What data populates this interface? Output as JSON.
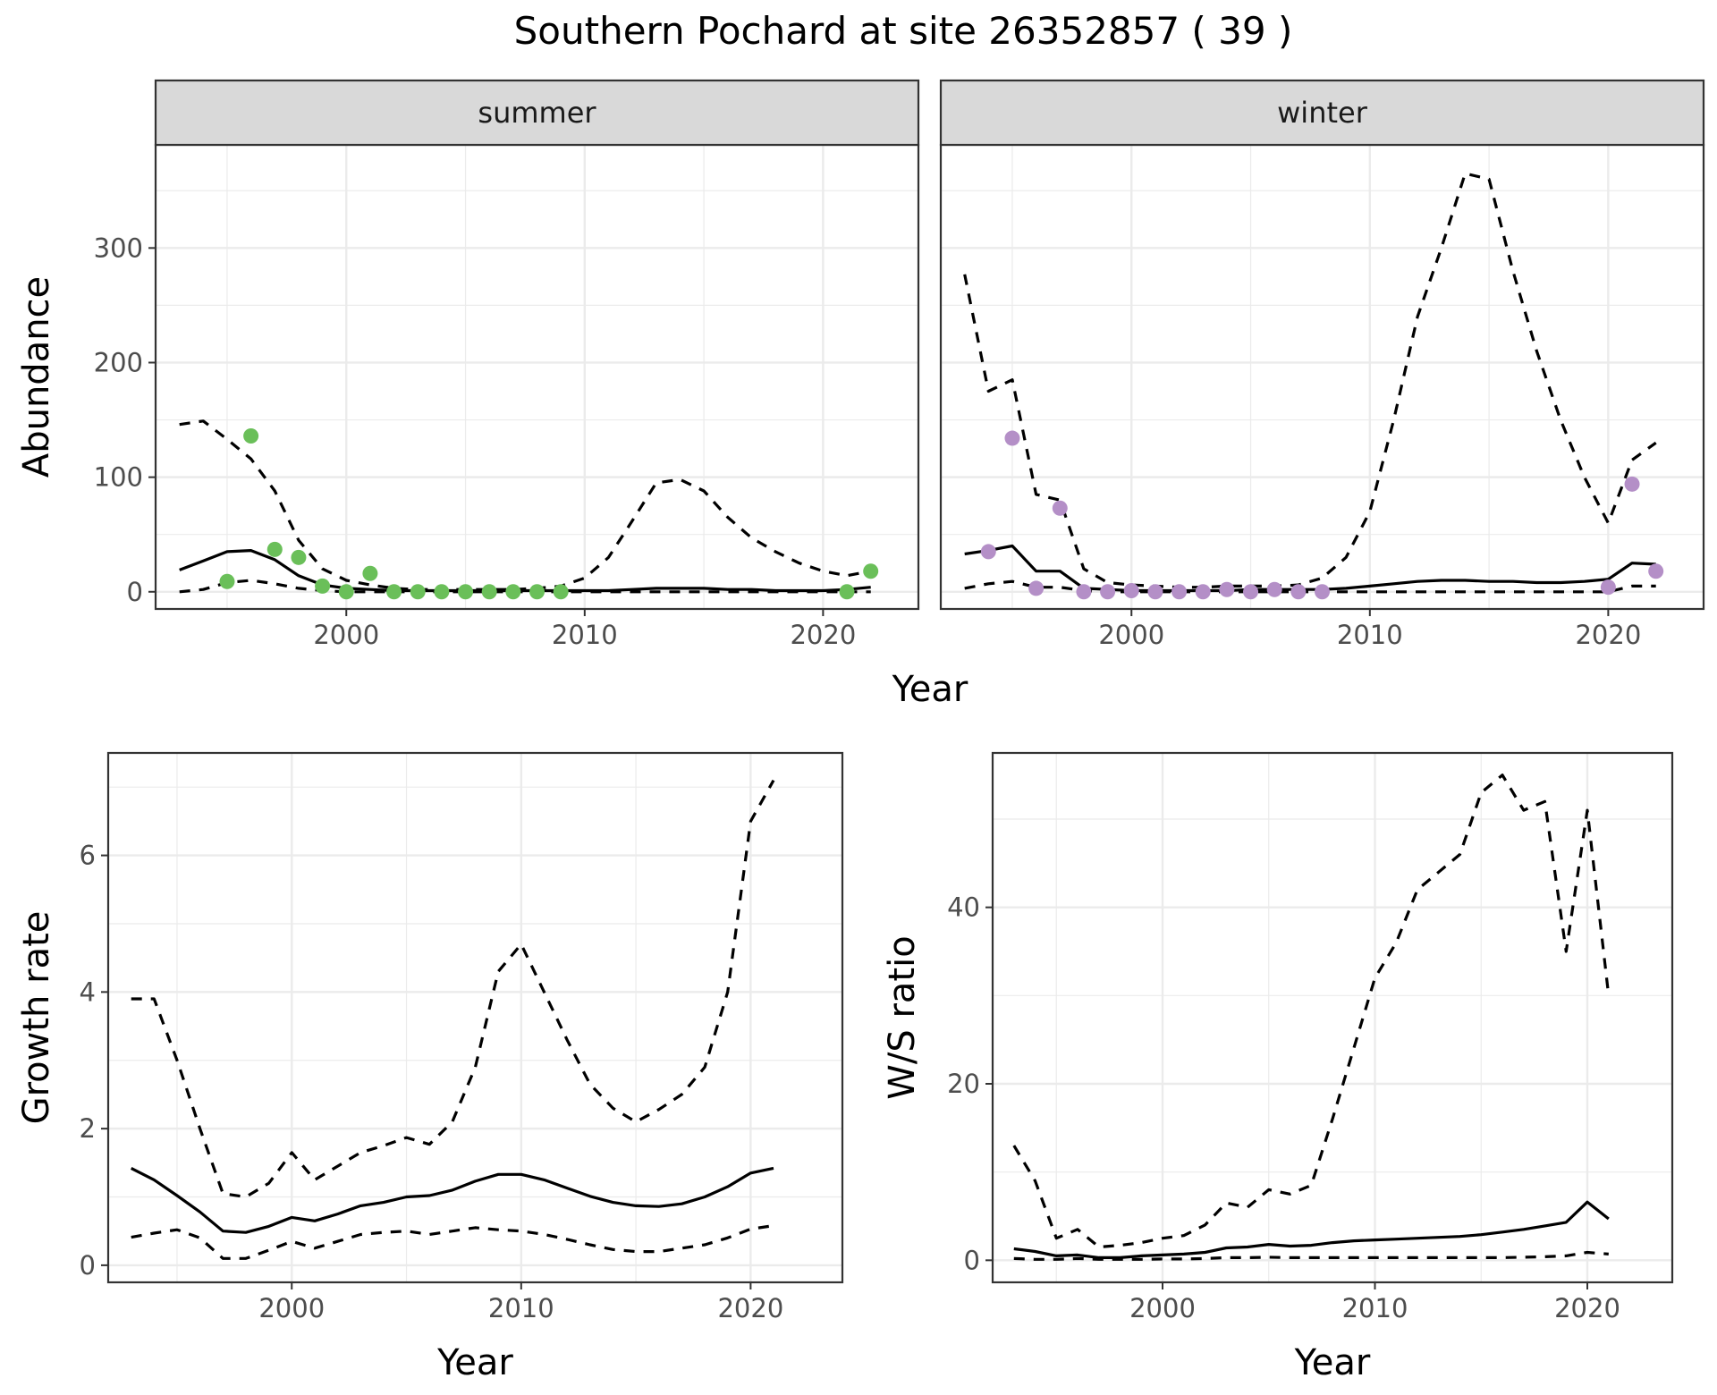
{
  "title": "Southern Pochard at site 26352857 ( 39 )",
  "colors": {
    "summer_points": "#6abf59",
    "winter_points": "#b48fc7",
    "lines": "#000000"
  },
  "chart_data": [
    {
      "id": "summer",
      "type": "line",
      "facet_label": "summer",
      "xlabel": "",
      "ylabel": "Abundance",
      "xlim": [
        1992,
        2024
      ],
      "ylim": [
        -15,
        390
      ],
      "xticks": [
        2000,
        2010,
        2020
      ],
      "yticks": [
        0,
        100,
        200,
        300
      ],
      "grid": true,
      "lines": {
        "x": [
          1993,
          1994,
          1995,
          1996,
          1997,
          1998,
          1999,
          2000,
          2001,
          2002,
          2003,
          2004,
          2005,
          2006,
          2007,
          2008,
          2009,
          2010,
          2011,
          2012,
          2013,
          2014,
          2015,
          2016,
          2017,
          2018,
          2019,
          2020,
          2021,
          2022
        ],
        "estimate": [
          19,
          27,
          35,
          36,
          28,
          14,
          6,
          3,
          2,
          1,
          1,
          1,
          1,
          1,
          1,
          1,
          1,
          1,
          1,
          2,
          3,
          3,
          3,
          2,
          2,
          1,
          1,
          1,
          2,
          4
        ],
        "upper": [
          146,
          149,
          133,
          116,
          88,
          45,
          20,
          10,
          6,
          3,
          2,
          2,
          2,
          2,
          2,
          3,
          5,
          12,
          30,
          62,
          95,
          98,
          88,
          65,
          47,
          35,
          25,
          18,
          14,
          18
        ],
        "lower": [
          0,
          2,
          8,
          10,
          7,
          3,
          1,
          0,
          0,
          0,
          0,
          0,
          0,
          0,
          0,
          0,
          0,
          0,
          0,
          0,
          0,
          0,
          0,
          0,
          0,
          0,
          0,
          0,
          0,
          0
        ]
      },
      "points": {
        "x": [
          1995,
          1996,
          1997,
          1998,
          1999,
          2000,
          2001,
          2002,
          2003,
          2004,
          2005,
          2006,
          2007,
          2008,
          2009,
          2021,
          2022
        ],
        "y": [
          9,
          136,
          37,
          30,
          5,
          0,
          16,
          0,
          0,
          0,
          0,
          0,
          0,
          0,
          0,
          0,
          18
        ]
      }
    },
    {
      "id": "winter",
      "type": "line",
      "facet_label": "winter",
      "xlabel": "",
      "ylabel": "",
      "xlim": [
        1992,
        2024
      ],
      "ylim": [
        -15,
        390
      ],
      "xticks": [
        2000,
        2010,
        2020
      ],
      "yticks": [
        0,
        100,
        200,
        300
      ],
      "grid": true,
      "lines": {
        "x": [
          1993,
          1994,
          1995,
          1996,
          1997,
          1998,
          1999,
          2000,
          2001,
          2002,
          2003,
          2004,
          2005,
          2006,
          2007,
          2008,
          2009,
          2010,
          2011,
          2012,
          2013,
          2014,
          2015,
          2016,
          2017,
          2018,
          2019,
          2020,
          2021,
          2022
        ],
        "estimate": [
          33,
          36,
          40,
          18,
          18,
          3,
          2,
          1,
          1,
          1,
          1,
          1,
          2,
          2,
          2,
          2,
          3,
          5,
          7,
          9,
          10,
          10,
          9,
          9,
          8,
          8,
          9,
          11,
          25,
          24
        ],
        "upper": [
          277,
          175,
          185,
          85,
          80,
          20,
          8,
          6,
          5,
          4,
          4,
          5,
          5,
          5,
          6,
          12,
          30,
          70,
          150,
          240,
          300,
          365,
          360,
          280,
          210,
          150,
          100,
          60,
          115,
          130
        ],
        "lower": [
          3,
          7,
          9,
          4,
          4,
          1,
          0,
          0,
          0,
          0,
          0,
          0,
          0,
          0,
          0,
          0,
          0,
          0,
          0,
          0,
          0,
          0,
          0,
          0,
          0,
          0,
          0,
          0,
          5,
          5
        ]
      },
      "points": {
        "x": [
          1994,
          1995,
          1996,
          1997,
          1998,
          1999,
          2000,
          2001,
          2002,
          2003,
          2004,
          2005,
          2006,
          2007,
          2008,
          2020,
          2021,
          2022
        ],
        "y": [
          35,
          134,
          3,
          73,
          0,
          0,
          1,
          0,
          0,
          0,
          2,
          0,
          2,
          0,
          0,
          4,
          94,
          18
        ]
      }
    },
    {
      "id": "growth",
      "type": "line",
      "xlabel": "Year",
      "ylabel": "Growth rate",
      "xlim": [
        1992,
        2024
      ],
      "ylim": [
        -0.25,
        7.5
      ],
      "xticks": [
        2000,
        2010,
        2020
      ],
      "yticks": [
        0,
        2,
        4,
        6
      ],
      "grid": true,
      "lines": {
        "x": [
          1993,
          1994,
          1995,
          1996,
          1997,
          1998,
          1999,
          2000,
          2001,
          2002,
          2003,
          2004,
          2005,
          2006,
          2007,
          2008,
          2009,
          2010,
          2011,
          2012,
          2013,
          2014,
          2015,
          2016,
          2017,
          2018,
          2019,
          2020,
          2021
        ],
        "estimate": [
          1.42,
          1.25,
          1.02,
          0.78,
          0.5,
          0.48,
          0.57,
          0.7,
          0.65,
          0.75,
          0.87,
          0.92,
          1.0,
          1.02,
          1.1,
          1.23,
          1.33,
          1.33,
          1.25,
          1.13,
          1.01,
          0.92,
          0.87,
          0.86,
          0.9,
          1.0,
          1.15,
          1.35,
          1.42
        ],
        "upper": [
          3.9,
          3.9,
          3.0,
          2.0,
          1.05,
          1.0,
          1.2,
          1.65,
          1.25,
          1.45,
          1.65,
          1.75,
          1.87,
          1.77,
          2.1,
          2.9,
          4.3,
          4.7,
          4.0,
          3.3,
          2.65,
          2.3,
          2.1,
          2.28,
          2.5,
          2.9,
          4.0,
          6.5,
          7.1
        ],
        "lower": [
          0.41,
          0.47,
          0.52,
          0.4,
          0.1,
          0.1,
          0.22,
          0.35,
          0.25,
          0.35,
          0.45,
          0.48,
          0.5,
          0.45,
          0.5,
          0.55,
          0.52,
          0.5,
          0.45,
          0.38,
          0.3,
          0.23,
          0.2,
          0.2,
          0.25,
          0.3,
          0.4,
          0.53,
          0.58
        ]
      }
    },
    {
      "id": "ratio",
      "type": "line",
      "xlabel": "Year",
      "ylabel": "W/S ratio",
      "xlim": [
        1992,
        2024
      ],
      "ylim": [
        -2.5,
        57.5
      ],
      "xticks": [
        2000,
        2010,
        2020
      ],
      "yticks": [
        0,
        20,
        40
      ],
      "grid": true,
      "lines": {
        "x": [
          1993,
          1994,
          1995,
          1996,
          1997,
          1998,
          1999,
          2000,
          2001,
          2002,
          2003,
          2004,
          2005,
          2006,
          2007,
          2008,
          2009,
          2010,
          2011,
          2012,
          2013,
          2014,
          2015,
          2016,
          2017,
          2018,
          2019,
          2020,
          2021
        ],
        "estimate": [
          1.3,
          1.0,
          0.5,
          0.6,
          0.3,
          0.3,
          0.5,
          0.6,
          0.7,
          0.9,
          1.4,
          1.5,
          1.8,
          1.6,
          1.7,
          2.0,
          2.2,
          2.3,
          2.4,
          2.5,
          2.6,
          2.7,
          2.9,
          3.2,
          3.5,
          3.9,
          4.3,
          6.6,
          4.7
        ],
        "upper": [
          13,
          9,
          2.5,
          3.5,
          1.5,
          1.7,
          2.0,
          2.5,
          2.8,
          4.0,
          6.5,
          6.0,
          8.0,
          7.5,
          8.5,
          16,
          24,
          32,
          36,
          42,
          44,
          46,
          53,
          55,
          51,
          52,
          35,
          51,
          30
        ],
        "lower": [
          0.2,
          0.1,
          0.1,
          0.2,
          0.1,
          0.1,
          0.1,
          0.15,
          0.15,
          0.2,
          0.3,
          0.3,
          0.35,
          0.3,
          0.3,
          0.3,
          0.3,
          0.3,
          0.3,
          0.3,
          0.3,
          0.3,
          0.3,
          0.3,
          0.35,
          0.4,
          0.5,
          0.9,
          0.7
        ]
      }
    }
  ],
  "shared_xlabel_top": "Year"
}
